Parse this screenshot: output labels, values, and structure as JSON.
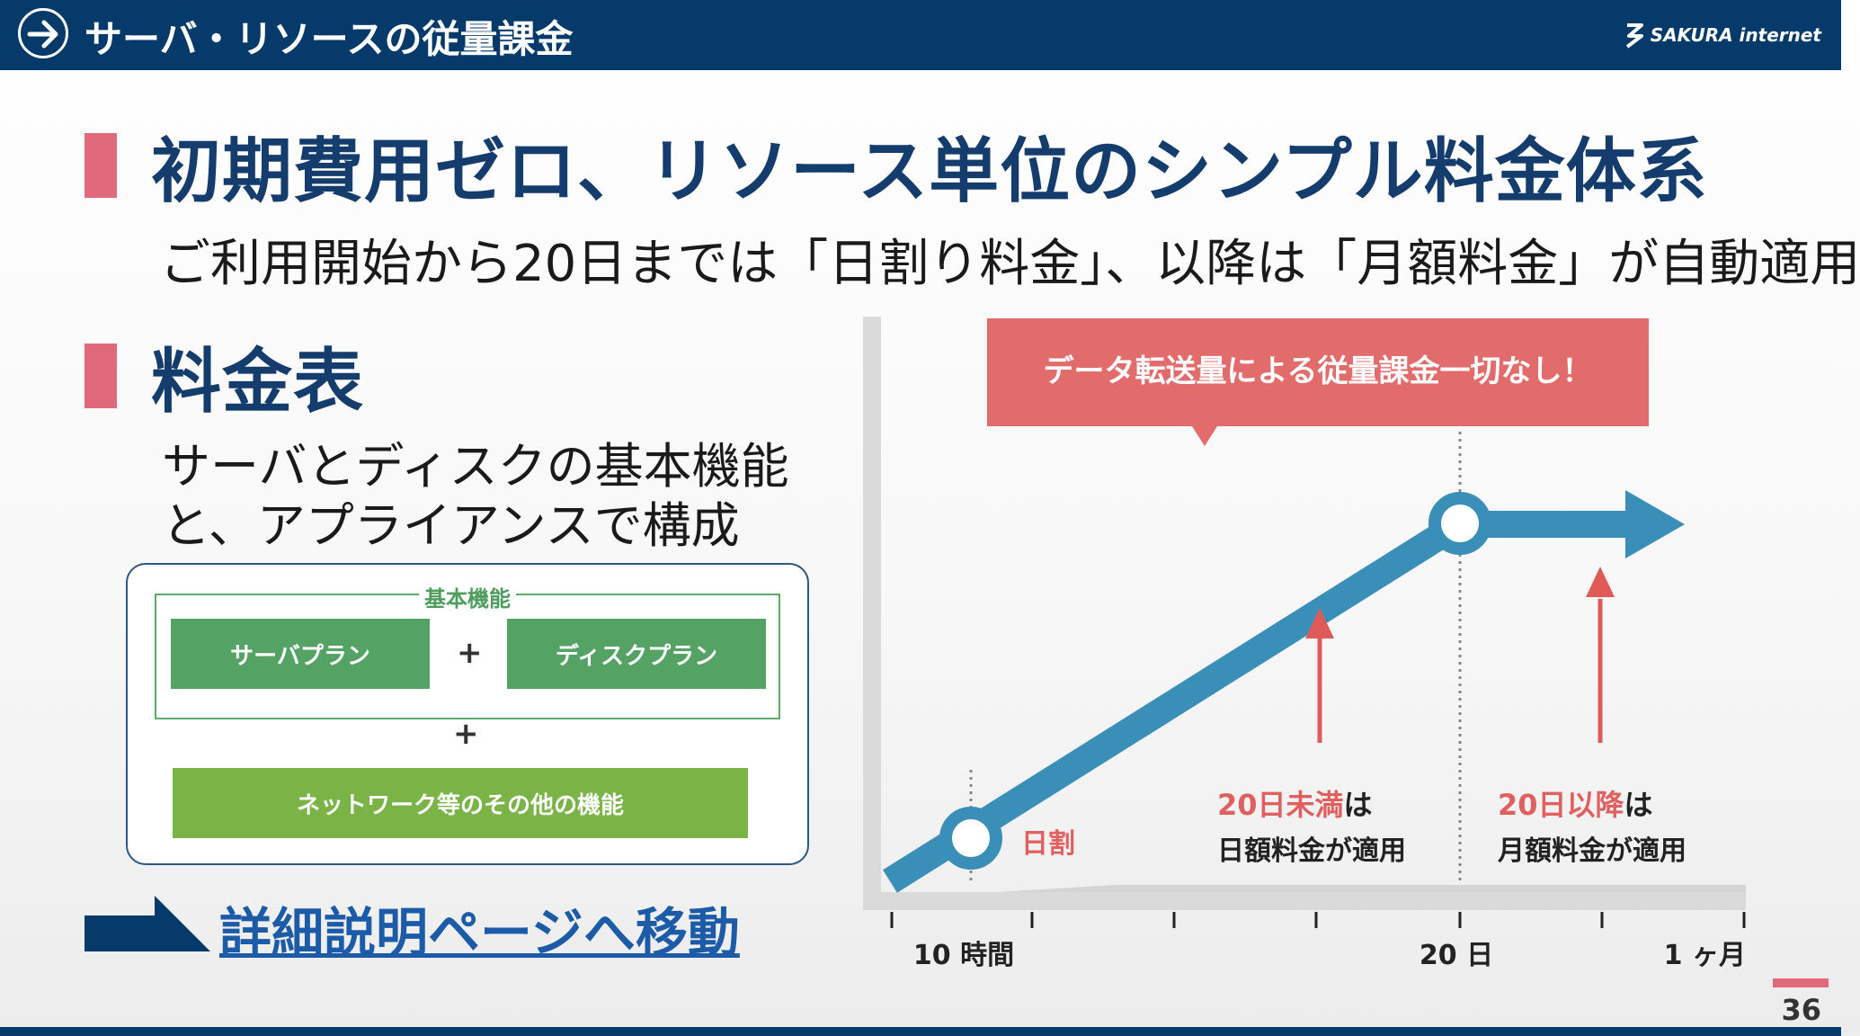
{
  "header": {
    "title": "サーバ・リソースの従量課金",
    "logo_text": "SAKURA internet",
    "arrow_icon": "arrow-right-circle-icon"
  },
  "headline": "初期費用ゼロ、リソース単位のシンプル料金体系",
  "subheadline": "ご利用開始から20日までは「日割り料金」、以降は「月額料金」が自動適用",
  "section_heading": "料金表",
  "description": "サーバとディスクの基本機能と、アプライアンスで構成",
  "panel": {
    "basic_label": "基本機能",
    "server_plan": "サーバプラン",
    "disk_plan": "ディスクプラン",
    "plus": "+",
    "network": "ネットワーク等のその他の機能"
  },
  "detail_link": "詳細説明ページへ移動",
  "chart_data": {
    "type": "line",
    "callout": "データ転送量による従量課金一切なし！",
    "x_ticks": [
      "10 時間",
      "20 日",
      "1 ヶ月"
    ],
    "point_label": "日割",
    "annotations": [
      {
        "highlight": "20日未満",
        "suffix": "は",
        "line2": "日額料金が適用"
      },
      {
        "highlight": "20日以降",
        "suffix": "は",
        "line2": "月額料金が適用"
      }
    ],
    "colors": {
      "line": "#3a8fb8",
      "callout": "#e26b6b",
      "arrow": "#e05a5a"
    }
  },
  "page_number": "36"
}
